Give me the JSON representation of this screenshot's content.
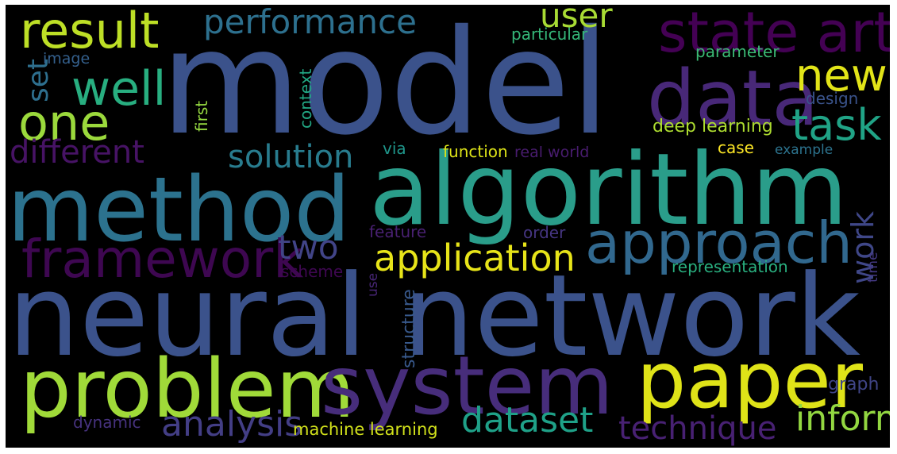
{
  "words": [
    {
      "text": "model",
      "color": "#3b528b"
    },
    {
      "text": "neural network",
      "color": "#3b528b"
    },
    {
      "text": "algorithm",
      "color": "#2a9d8a"
    },
    {
      "text": "method",
      "color": "#2c728e"
    },
    {
      "text": "problem",
      "color": "#a0da39"
    },
    {
      "text": "system",
      "color": "#472d7b"
    },
    {
      "text": "paper",
      "color": "#dfe318"
    },
    {
      "text": "data",
      "color": "#482878"
    },
    {
      "text": "approach",
      "color": "#31688e"
    },
    {
      "text": "framework",
      "color": "#3e0751"
    },
    {
      "text": "state art",
      "color": "#440154"
    },
    {
      "text": "result",
      "color": "#bddf26"
    },
    {
      "text": "well",
      "color": "#28ae80"
    },
    {
      "text": "one",
      "color": "#9bd93c"
    },
    {
      "text": "new",
      "color": "#e2e418"
    },
    {
      "text": "task",
      "color": "#20a386"
    },
    {
      "text": "performance",
      "color": "#2d708e"
    },
    {
      "text": "user",
      "color": "#a8db34"
    },
    {
      "text": "different",
      "color": "#471365"
    },
    {
      "text": "solution",
      "color": "#287c8e"
    },
    {
      "text": "application",
      "color": "#e7e419"
    },
    {
      "text": "two",
      "color": "#414487"
    },
    {
      "text": "analysis",
      "color": "#3f4788"
    },
    {
      "text": "dataset",
      "color": "#433e85"
    },
    {
      "text": "technique",
      "color": "#1fa188"
    },
    {
      "text": "information",
      "color": "#482173"
    },
    {
      "text": "work",
      "color": "#93d741"
    },
    {
      "text": "set",
      "color": "#2e6f8e"
    },
    {
      "text": "deep learning",
      "color": "#addc30"
    },
    {
      "text": "particular",
      "color": "#35b779"
    },
    {
      "text": "parameter",
      "color": "#3bbb75"
    },
    {
      "text": "image",
      "color": "#34608d"
    },
    {
      "text": "first",
      "color": "#95d840"
    },
    {
      "text": "context",
      "color": "#22a884"
    },
    {
      "text": "design",
      "color": "#3a538b"
    },
    {
      "text": "via",
      "color": "#1f968b"
    },
    {
      "text": "function",
      "color": "#dde318"
    },
    {
      "text": "real world",
      "color": "#481c6e"
    },
    {
      "text": "case",
      "color": "#fde725"
    },
    {
      "text": "example",
      "color": "#2c738e"
    },
    {
      "text": "feature",
      "color": "#482071"
    },
    {
      "text": "order",
      "color": "#453581"
    },
    {
      "text": "scheme",
      "color": "#3e0751"
    },
    {
      "text": "representation",
      "color": "#29af7f"
    },
    {
      "text": "time",
      "color": "#443983"
    },
    {
      "text": "use",
      "color": "#482677"
    },
    {
      "text": "structure",
      "color": "#38598c"
    },
    {
      "text": "graph",
      "color": "#404588"
    },
    {
      "text": "dynamic",
      "color": "#46327e"
    },
    {
      "text": "machine learning",
      "color": "#d2e21b"
    }
  ]
}
